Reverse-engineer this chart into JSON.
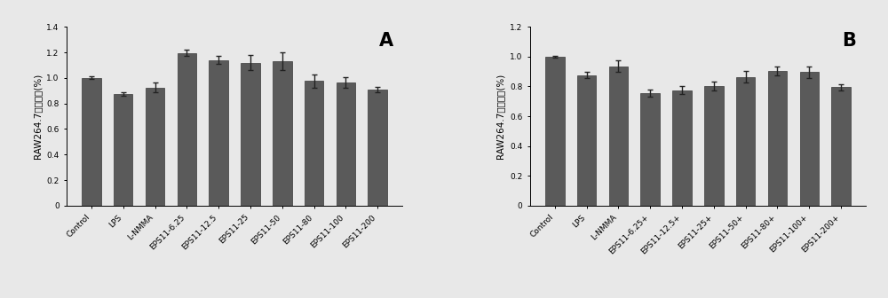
{
  "chart_A": {
    "categories": [
      "Control",
      "LPS",
      "L-NMMA",
      "EPS11-6.25",
      "EPS11-12.5",
      "EPS11-25",
      "EPS11-50",
      "EPS11-80",
      "EPS11-100",
      "EPS11-200"
    ],
    "values": [
      1.0,
      0.875,
      0.925,
      1.195,
      1.14,
      1.12,
      1.13,
      0.975,
      0.965,
      0.91
    ],
    "errors": [
      0.01,
      0.015,
      0.04,
      0.025,
      0.03,
      0.06,
      0.07,
      0.055,
      0.04,
      0.02
    ],
    "ylabel": "RAW264.7细胞活力(%)",
    "ylim": [
      0,
      1.4
    ],
    "yticks": [
      0,
      0.2,
      0.4,
      0.6,
      0.8,
      1.0,
      1.2,
      1.4
    ],
    "label": "A"
  },
  "chart_B": {
    "categories": [
      "Control",
      "LPS",
      "L-NMMA",
      "EPS11-6.25+",
      "EPS11-12.5+",
      "EPS11-25+",
      "EPS11-50+",
      "EPS11-80+",
      "EPS11-100+",
      "EPS11-200+"
    ],
    "values": [
      1.0,
      0.875,
      0.935,
      0.755,
      0.775,
      0.805,
      0.865,
      0.905,
      0.895,
      0.795
    ],
    "errors": [
      0.005,
      0.02,
      0.04,
      0.025,
      0.025,
      0.03,
      0.04,
      0.03,
      0.04,
      0.02
    ],
    "ylabel": "RAW264.7细胞活力(%)",
    "ylim": [
      0,
      1.2
    ],
    "yticks": [
      0,
      0.2,
      0.4,
      0.6,
      0.8,
      1.0,
      1.2
    ],
    "label": "B"
  },
  "bar_color": "#5a5a5a",
  "bar_edge_color": "#3a3a3a",
  "error_color": "#222222",
  "background_color": "#e8e8e8",
  "tick_fontsize": 6.5,
  "ylabel_fontsize": 7.5,
  "label_fontsize": 15,
  "bar_width": 0.6
}
